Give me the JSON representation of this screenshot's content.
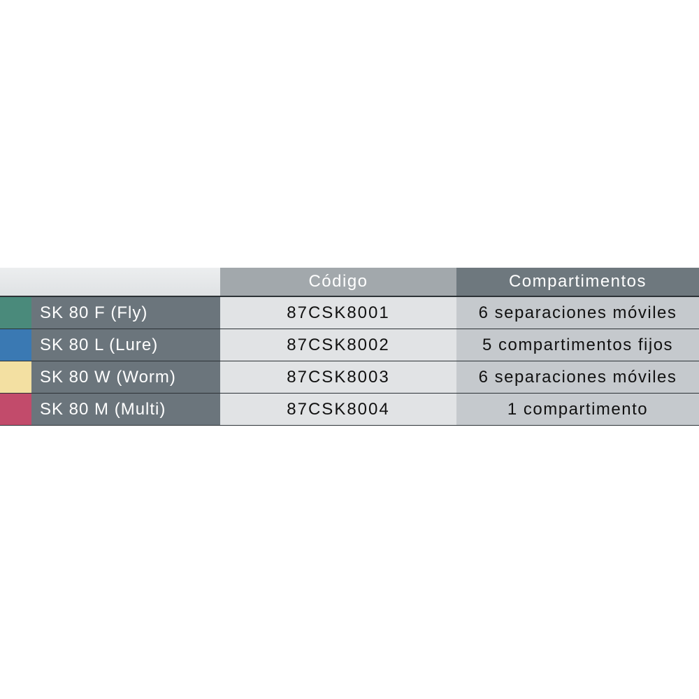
{
  "table": {
    "headers": {
      "code": "Código",
      "compartments": "Compartimentos"
    },
    "rows": [
      {
        "name": "SK 80 F (Fly)",
        "code": "87CSK8001",
        "compartments": "6 separaciones móviles",
        "color": "#4a8a7b"
      },
      {
        "name": "SK 80 L (Lure)",
        "code": "87CSK8002",
        "compartments": "5 compartimentos fijos",
        "color": "#3a79b3"
      },
      {
        "name": "SK 80 W (Worm)",
        "code": "87CSK8003",
        "compartments": "6 separaciones móviles",
        "color": "#f3e0a2"
      },
      {
        "name": "SK 80 M (Multi)",
        "code": "87CSK8004",
        "compartments": "1 compartimento",
        "color": "#c24b6b"
      }
    ]
  }
}
